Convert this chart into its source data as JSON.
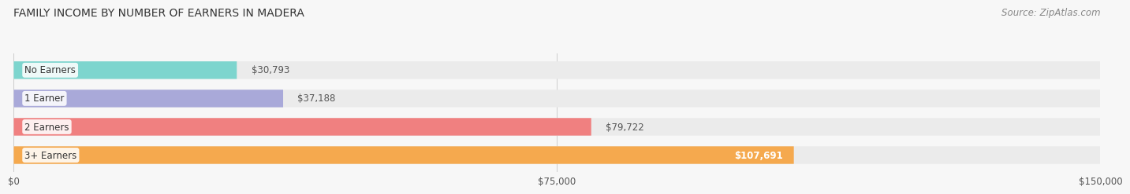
{
  "title": "FAMILY INCOME BY NUMBER OF EARNERS IN MADERA",
  "source": "Source: ZipAtlas.com",
  "categories": [
    "No Earners",
    "1 Earner",
    "2 Earners",
    "3+ Earners"
  ],
  "values": [
    30793,
    37188,
    79722,
    107691
  ],
  "bar_colors": [
    "#7DD5CE",
    "#A9A9D9",
    "#F08080",
    "#F5A94E"
  ],
  "bar_bg_color": "#EBEBEB",
  "background_color": "#F7F7F7",
  "xlim": [
    0,
    150000
  ],
  "xticks": [
    0,
    75000,
    150000
  ],
  "xtick_labels": [
    "$0",
    "$75,000",
    "$150,000"
  ],
  "value_labels": [
    "$30,793",
    "$37,188",
    "$79,722",
    "$107,691"
  ],
  "title_fontsize": 10,
  "source_fontsize": 8.5,
  "bar_label_fontsize": 8.5,
  "value_label_fontsize": 8.5,
  "tick_fontsize": 8.5
}
